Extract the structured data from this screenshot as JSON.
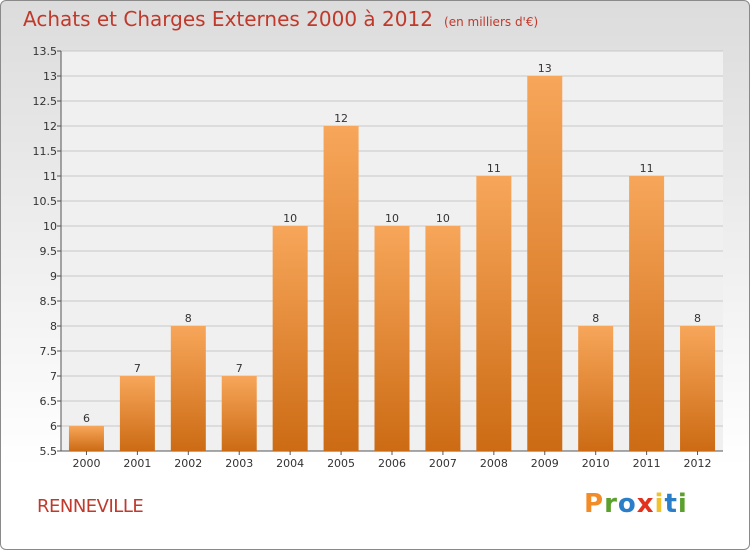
{
  "header": {
    "title": "Achats et Charges Externes 2000 à 2012",
    "unit": "(en milliers d'€)"
  },
  "footer": {
    "commune": "RENNEVILLE",
    "brand": "Proxiti"
  },
  "colors": {
    "bar_top": "#f7a65a",
    "bar_bottom": "#cc6b14",
    "title": "#c0392b",
    "brand_letters": [
      "#f28c28",
      "#5aa02c",
      "#2a7fc8",
      "#e2311d",
      "#f2c12e",
      "#2a7fc8",
      "#5aa02c"
    ]
  },
  "chart_data": {
    "type": "bar",
    "categories": [
      "2000",
      "2001",
      "2002",
      "2003",
      "2004",
      "2005",
      "2006",
      "2007",
      "2008",
      "2009",
      "2010",
      "2011",
      "2012"
    ],
    "values": [
      6,
      7,
      8,
      7,
      10,
      12,
      10,
      10,
      11,
      13,
      8,
      11,
      8
    ],
    "ylim": [
      5.5,
      13.5
    ],
    "yticks": [
      "5.5",
      "6",
      "6.5",
      "7",
      "7.5",
      "8",
      "8.5",
      "9",
      "9.5",
      "10",
      "10.5",
      "11",
      "11.5",
      "12",
      "12.5",
      "13",
      "13.5"
    ],
    "grid": true
  }
}
